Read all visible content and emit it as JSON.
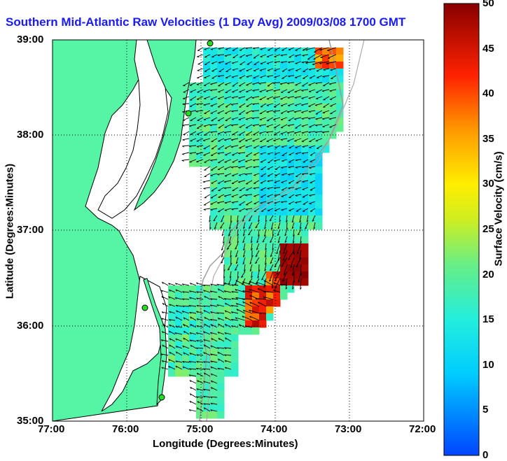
{
  "title": "Southern Mid-Atlantic Raw Velocities (1 Day Avg) 2009/03/08 1700 GMT",
  "axes": {
    "xlabel": "Longitude (Degrees:Minutes)",
    "ylabel": "Latitude (Degrees:Minutes)",
    "xticks": [
      "77:00",
      "76:00",
      "75:00",
      "74:00",
      "73:00",
      "72:00"
    ],
    "yticks": [
      "39:00",
      "38:00",
      "37:00",
      "36:00",
      "35:00"
    ]
  },
  "colorbar": {
    "label": "Surface Velocity (cm/s)",
    "ticks": [
      "50",
      "45",
      "40",
      "35",
      "30",
      "25",
      "20",
      "15",
      "10",
      "5",
      "0"
    ],
    "min": 0,
    "max": 50
  },
  "colors": {
    "land": "#55f5a5",
    "title": "#1a1aff",
    "station": "#22dd22"
  },
  "map": {
    "lon_range": [
      -77,
      -72
    ],
    "lat_range": [
      35,
      39
    ],
    "grid": true,
    "features": [
      "land",
      "coastline",
      "chesapeake-bay",
      "bathymetry-contour",
      "hf-radar-stations",
      "velocity-field",
      "velocity-arrows"
    ]
  }
}
